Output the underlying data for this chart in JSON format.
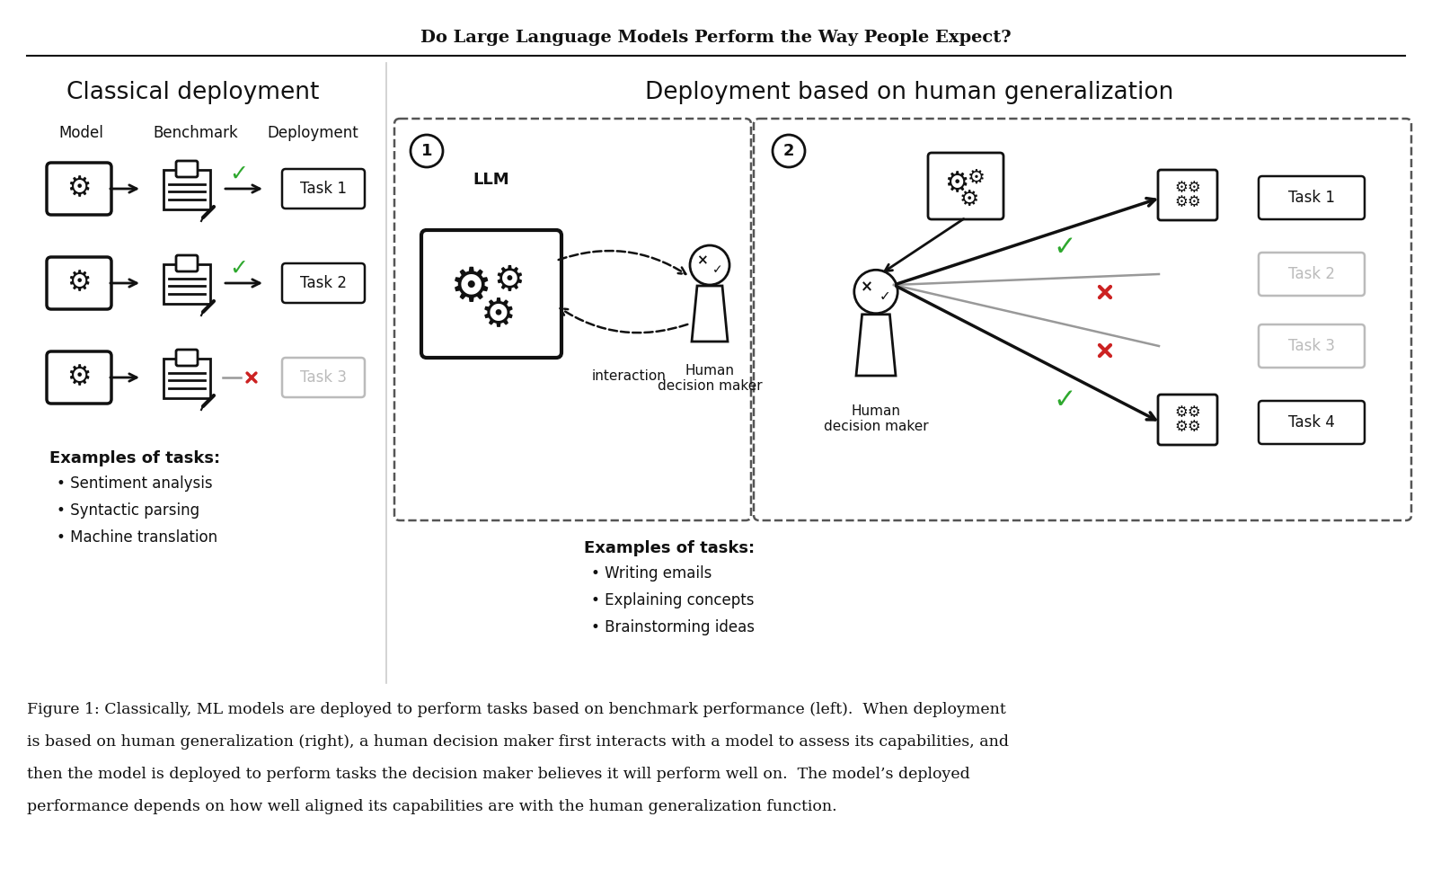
{
  "title": "Do Large Language Models Perform the Way People Expect?",
  "left_section_title": "Classical deployment",
  "right_section_title": "Deployment based on human generalization",
  "left_examples_title": "Examples of tasks:",
  "left_examples": [
    "Sentiment analysis",
    "Syntactic parsing",
    "Machine translation"
  ],
  "right_examples_title": "Examples of tasks:",
  "right_examples": [
    "Writing emails",
    "Explaining concepts",
    "Brainstorming ideas"
  ],
  "caption_line1": "Figure 1: Classically, ML models are deployed to perform tasks based on benchmark performance (left).  When deployment",
  "caption_line2": "is based on human generalization (right), a human decision maker first interacts with a model to assess its capabilities, and",
  "caption_line3": "then the model is deployed to perform tasks the decision maker believes it will perform well on.  The model’s deployed",
  "caption_line4": "performance depends on how well aligned its capabilities are with the human generalization function.",
  "bg_color": "#ffffff",
  "green_color": "#2ea82e",
  "red_color": "#cc2222",
  "gray_color": "#bbbbbb",
  "dark_gray": "#999999"
}
